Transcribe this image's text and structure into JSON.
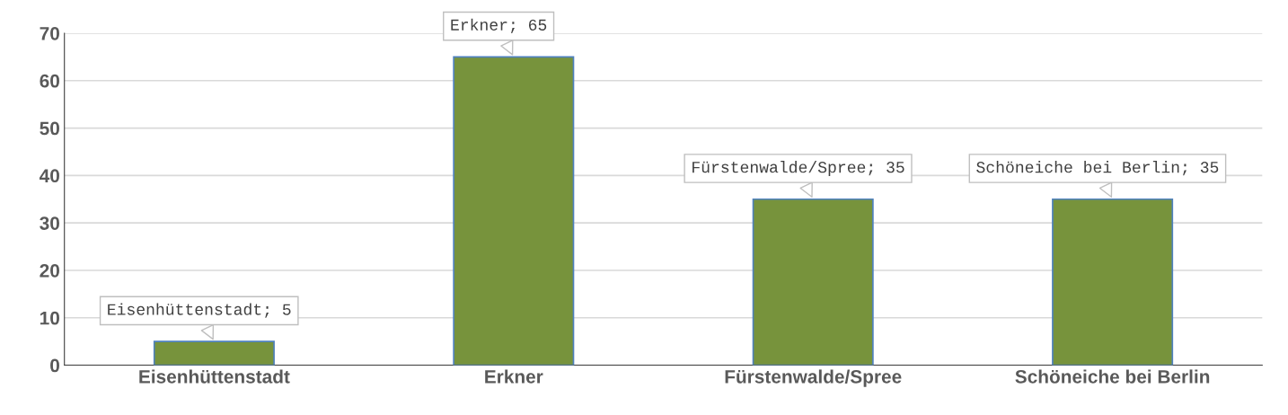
{
  "chart_data": {
    "type": "bar",
    "categories": [
      "Eisenhüttenstadt",
      "Erkner",
      "Fürstenwalde/Spree",
      "Schöneiche bei Berlin"
    ],
    "values": [
      5,
      65,
      35,
      35
    ],
    "color": "#77933c",
    "value_labels": [
      "Eisenhüttenstadt; 5",
      "Erkner; 65",
      "Fürstenwalde/Spree; 35",
      "Schöneiche bei Berlin; 35"
    ],
    "ylim": [
      0,
      70
    ],
    "yticks": [
      0,
      10,
      20,
      30,
      40,
      50,
      60,
      70
    ],
    "grid": "y"
  }
}
